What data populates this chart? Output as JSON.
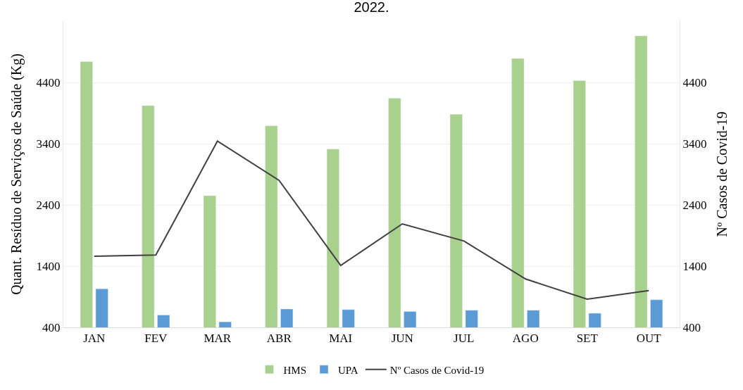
{
  "chart_data": {
    "type": "bar",
    "title": "2022.",
    "categories": [
      "JAN",
      "FEV",
      "MAR",
      "ABR",
      "MAI",
      "JUN",
      "JUL",
      "AGO",
      "SET",
      "OUT"
    ],
    "ylabel": "Quant. Resíduo de Serviços de Saúde (Kg)",
    "y2label": "Nº Casos de Covid-19",
    "ylim": [
      400,
      5400
    ],
    "yticks": [
      400,
      1400,
      2400,
      3400,
      4400
    ],
    "y2lim": [
      400,
      5400
    ],
    "y2ticks": [
      400,
      1400,
      2400,
      3400,
      4400
    ],
    "grid": "y",
    "legend": "bottom",
    "series": [
      {
        "name": "HMS",
        "color": "#a9d18e",
        "values": [
          4740,
          4020,
          2550,
          3690,
          3310,
          4140,
          3880,
          4790,
          4430,
          5160
        ]
      },
      {
        "name": "UPA",
        "color": "#5b9bd5",
        "values": [
          1030,
          600,
          490,
          700,
          690,
          660,
          680,
          680,
          630,
          850
        ]
      },
      {
        "name": "Nº Casos de Covid-19",
        "type": "line",
        "axis": "y2",
        "color": "#404040",
        "values": [
          1560,
          1580,
          3440,
          2800,
          1410,
          2090,
          1810,
          1190,
          860,
          1000
        ]
      }
    ]
  }
}
